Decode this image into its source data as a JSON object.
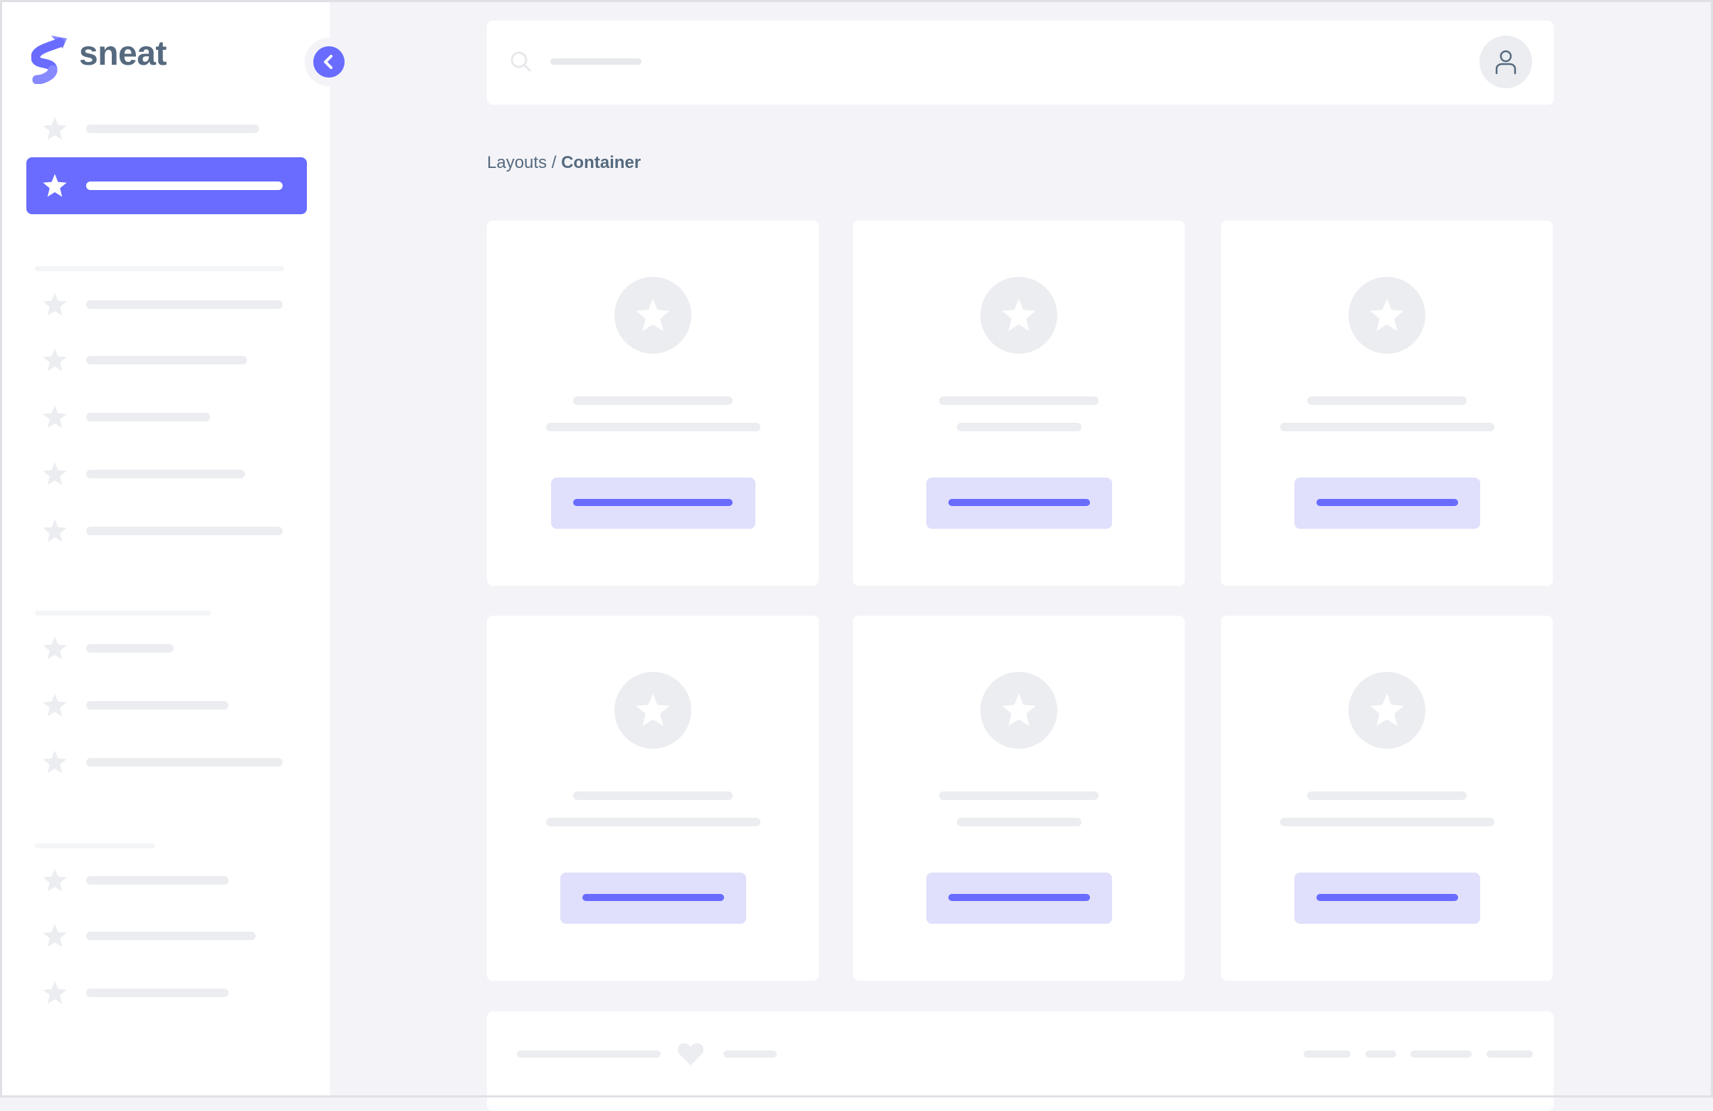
{
  "brand": {
    "name": "sneat",
    "logo_colors": [
      "#696cff",
      "#8789ff"
    ]
  },
  "colors": {
    "primary": "#696cff",
    "primary_light": "#e0e0fc",
    "skeleton": "#ebedf0",
    "background": "#f4f4f8",
    "text": "#566a7f"
  },
  "sidebar": {
    "collapse_icon": "chevron-left-icon",
    "item_icon": "star-icon",
    "active_index": 1
  },
  "header": {
    "search_icon": "search-icon",
    "avatar_icon": "user-icon"
  },
  "breadcrumb": {
    "parent": "Layouts",
    "separator": "/",
    "current": "Container"
  },
  "footer": {
    "icon": "heart-icon"
  }
}
